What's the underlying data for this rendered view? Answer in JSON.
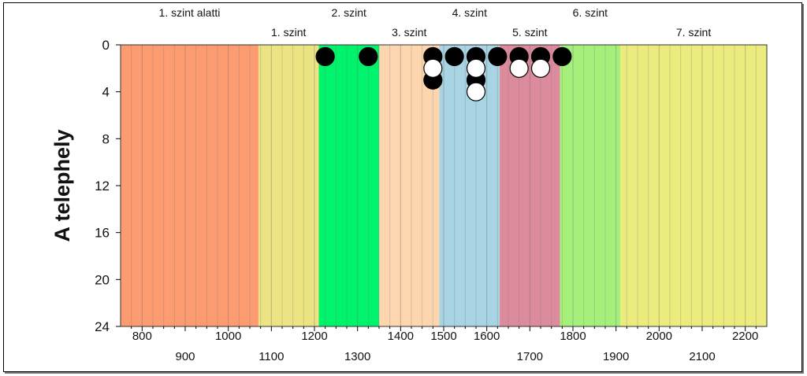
{
  "chart_data": {
    "type": "scatter",
    "title": "",
    "xlabel": "",
    "ylabel": "A telephely",
    "xlim": [
      750,
      2250
    ],
    "ylim": [
      0,
      24
    ],
    "y_reversed": true,
    "yticks": [
      0,
      4,
      8,
      12,
      16,
      20,
      24
    ],
    "xticks_top_row": [
      800,
      1000,
      1200,
      1400,
      1500,
      1600,
      1800,
      2000,
      2200
    ],
    "xticks_bottom_row": [
      900,
      1100,
      1300,
      1700,
      1900,
      2100
    ],
    "bands": [
      {
        "label": "1. szint alatti",
        "from": 750,
        "to": 1070,
        "color": "#fd9b71",
        "label_row": "top"
      },
      {
        "label": "1. szint",
        "from": 1070,
        "to": 1210,
        "color": "#ece382",
        "label_row": "bottom"
      },
      {
        "label": "2. szint",
        "from": 1210,
        "to": 1350,
        "color": "#00f46b",
        "label_row": "top"
      },
      {
        "label": "3. szint",
        "from": 1350,
        "to": 1490,
        "color": "#fdd6b0",
        "label_row": "bottom"
      },
      {
        "label": "4. szint",
        "from": 1490,
        "to": 1630,
        "color": "#a8d4e4",
        "label_row": "top"
      },
      {
        "label": "5. szint",
        "from": 1630,
        "to": 1770,
        "color": "#dc8b9c",
        "label_row": "bottom"
      },
      {
        "label": "6. szint",
        "from": 1770,
        "to": 1910,
        "color": "#a5f07b",
        "label_row": "top"
      },
      {
        "label": "7. szint",
        "from": 1910,
        "to": 2250,
        "color": "#ecec7e",
        "label_row": "bottom"
      }
    ],
    "series": [
      {
        "fill": "#000000",
        "points": [
          {
            "x": 1225,
            "y": 1
          },
          {
            "x": 1325,
            "y": 1
          },
          {
            "x": 1475,
            "y": 1
          },
          {
            "x": 1475,
            "y": 3
          },
          {
            "x": 1525,
            "y": 1
          },
          {
            "x": 1575,
            "y": 1
          },
          {
            "x": 1575,
            "y": 3
          },
          {
            "x": 1625,
            "y": 1
          },
          {
            "x": 1675,
            "y": 1
          },
          {
            "x": 1725,
            "y": 1
          },
          {
            "x": 1775,
            "y": 1
          }
        ]
      },
      {
        "fill": "#ffffff",
        "points": [
          {
            "x": 1475,
            "y": 2
          },
          {
            "x": 1575,
            "y": 2
          },
          {
            "x": 1575,
            "y": 4
          },
          {
            "x": 1675,
            "y": 2
          },
          {
            "x": 1725,
            "y": 2
          }
        ]
      }
    ],
    "grid_x": true,
    "grid_y": false
  }
}
